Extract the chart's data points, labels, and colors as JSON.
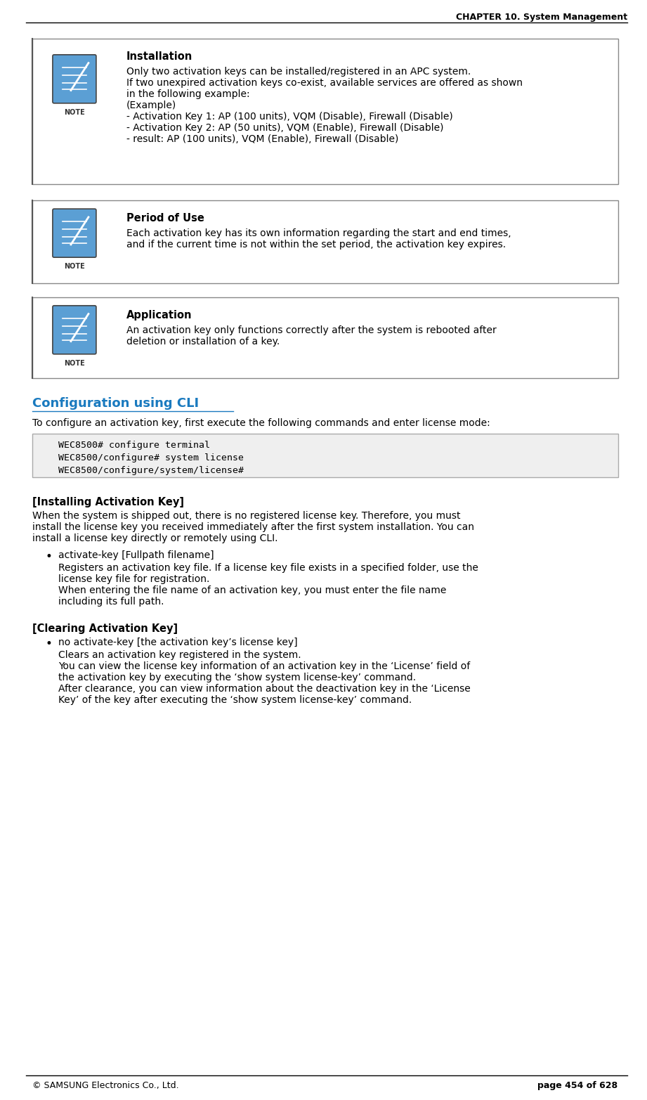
{
  "page_width": 9.21,
  "page_height": 15.65,
  "dpi": 100,
  "bg_color": "#ffffff",
  "header_text": "CHAPTER 10. System Management",
  "footer_left": "© SAMSUNG Electronics Co., Ltd.",
  "footer_right": "page 454 of 628",
  "note_boxes": [
    {
      "title": "Installation",
      "body_lines": [
        "Only two activation keys can be installed/registered in an APC system.",
        "If two unexpired activation keys co-exist, available services are offered as shown",
        "in the following example:",
        "(Example)",
        "- Activation Key 1: AP (100 units), VQM (Disable), Firewall (Disable)",
        "- Activation Key 2: AP (50 units), VQM (Enable), Firewall (Disable)",
        "- result: AP (100 units), VQM (Enable), Firewall (Disable)"
      ]
    },
    {
      "title": "Period of Use",
      "body_lines": [
        "Each activation key has its own information regarding the start and end times,",
        "and if the current time is not within the set period, the activation key expires."
      ]
    },
    {
      "title": "Application",
      "body_lines": [
        "An activation key only functions correctly after the system is rebooted after",
        "deletion or installation of a key."
      ]
    }
  ],
  "cli_section_title": "Configuration using CLI",
  "cli_intro": "To configure an activation key, first execute the following commands and enter license mode:",
  "cli_code_lines": [
    "    WEC8500# configure terminal",
    "    WEC8500/configure# system license",
    "    WEC8500/configure/system/license#"
  ],
  "installing_title": "[Installing Activation Key]",
  "installing_body": [
    "When the system is shipped out, there is no registered license key. Therefore, you must",
    "install the license key you received immediately after the first system installation. You can",
    "install a license key directly or remotely using CLI."
  ],
  "bullet1_head": "activate-key [Fullpath filename]",
  "bullet1_body": [
    "Registers an activation key file. If a license key file exists in a specified folder, use the",
    "license key file for registration.",
    "When entering the file name of an activation key, you must enter the file name",
    "including its full path."
  ],
  "clearing_title": "[Clearing Activation Key]",
  "bullet2_head": "no activate-key [the activation key’s license key]",
  "bullet2_body": [
    "Clears an activation key registered in the system.",
    "You can view the license key information of an activation key in the ‘License’ field of",
    "the activation key by executing the ‘show system license-key’ command.",
    "After clearance, you can view information about the deactivation key in the ‘License",
    "Key’ of the key after executing the ‘show system license-key’ command."
  ],
  "cli_title_color": "#1a7abf",
  "text_color": "#000000",
  "box_border_color": "#888888",
  "code_bg_color": "#efefef",
  "note_icon_blue": "#5b9fd4",
  "main_font_size": 10,
  "bold_font_size": 10.5,
  "header_font_size": 9,
  "code_font_size": 9.5,
  "cli_title_font_size": 13
}
